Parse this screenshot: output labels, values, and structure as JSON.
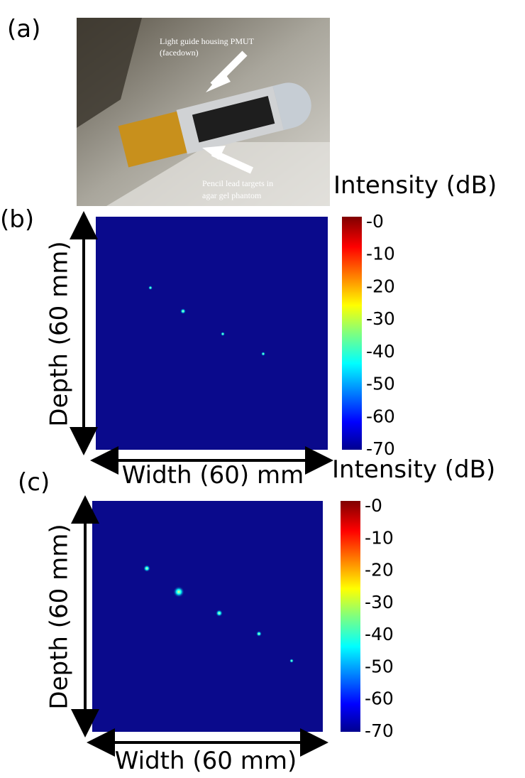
{
  "panels": [
    {
      "label": "(a)",
      "annotations": [
        [
          "Light guide housing PMUT",
          "(facedown)"
        ],
        [
          "Pencil lead targets in",
          "agar gel phantom"
        ]
      ]
    },
    {
      "label": "(b)",
      "y_label": "Depth (60 mm)",
      "x_label": "Width (60) mm",
      "colorbar": {
        "title": "Intensity (dB)",
        "ticks": [
          "-0",
          "-10",
          "-20",
          "-30",
          "-40",
          "-50",
          "-60",
          "-70"
        ]
      }
    },
    {
      "label": "(c)",
      "y_label": "Depth (60 mm)",
      "x_label": "Width (60 mm)",
      "colorbar": {
        "title": "Intensity (dB)",
        "ticks": [
          "-0",
          "-10",
          "-20",
          "-30",
          "-40",
          "-50",
          "-60",
          "-70"
        ]
      }
    }
  ]
}
